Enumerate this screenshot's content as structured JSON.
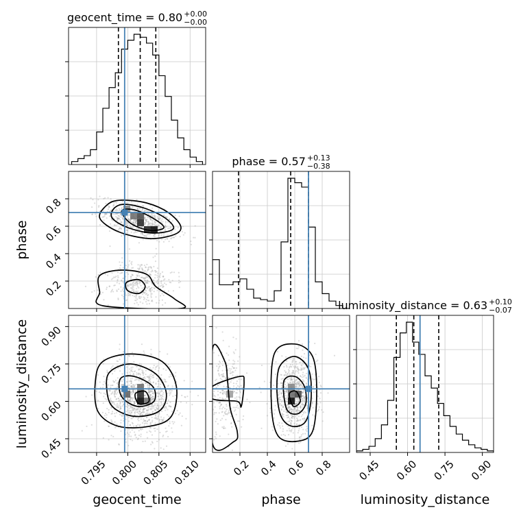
{
  "chart_data": {
    "type": "corner",
    "parameters": [
      "geocent_time",
      "phase",
      "luminosity_distance"
    ],
    "titles": [
      {
        "param": "geocent_time",
        "prefix": "geocent_time = ",
        "median": "0.80",
        "plus": "+0.00",
        "minus": "−0.00"
      },
      {
        "param": "phase",
        "prefix": "phase = ",
        "median": "0.57",
        "plus": "+0.13",
        "minus": "−0.38"
      },
      {
        "param": "luminosity_distance",
        "prefix": "luminosity_distance = ",
        "median": "0.63",
        "plus": "+0.10",
        "minus": "−0.07"
      }
    ],
    "axis_labels": {
      "geocent_time": "geocent_time",
      "phase": "phase",
      "luminosity_distance": "luminosity_distance"
    },
    "ranges": {
      "geocent_time": [
        0.7905,
        0.8125
      ],
      "phase": [
        0.0,
        1.0
      ],
      "luminosity_distance": [
        0.395,
        0.945
      ]
    },
    "ticks": {
      "geocent_time": [
        {
          "v": 0.795,
          "label": "0.795"
        },
        {
          "v": 0.8,
          "label": "0.800"
        },
        {
          "v": 0.805,
          "label": "0.805"
        },
        {
          "v": 0.81,
          "label": "0.810"
        }
      ],
      "phase": [
        {
          "v": 0.2,
          "label": "0.2"
        },
        {
          "v": 0.4,
          "label": "0.4"
        },
        {
          "v": 0.6,
          "label": "0.6"
        },
        {
          "v": 0.8,
          "label": "0.8"
        }
      ],
      "luminosity_distance": [
        {
          "v": 0.45,
          "label": "0.45"
        },
        {
          "v": 0.6,
          "label": "0.60"
        },
        {
          "v": 0.75,
          "label": "0.75"
        },
        {
          "v": 0.9,
          "label": "0.90"
        }
      ]
    },
    "truths": {
      "geocent_time": 0.7995,
      "phase": 0.7,
      "luminosity_distance": 0.65
    },
    "quantiles": {
      "geocent_time": [
        0.7985,
        0.802,
        0.8045
      ],
      "phase": [
        0.19,
        0.57,
        0.7
      ],
      "luminosity_distance": [
        0.555,
        0.625,
        0.725
      ]
    },
    "histograms": {
      "geocent_time": {
        "edges": [
          0.791,
          0.792,
          0.793,
          0.794,
          0.795,
          0.796,
          0.797,
          0.798,
          0.799,
          0.8,
          0.801,
          0.802,
          0.803,
          0.804,
          0.805,
          0.806,
          0.807,
          0.808,
          0.809,
          0.81,
          0.811,
          0.812
        ],
        "counts": [
          2,
          4,
          6,
          10,
          22,
          38,
          52,
          62,
          78,
          84,
          88,
          86,
          82,
          74,
          60,
          46,
          30,
          18,
          10,
          5,
          2
        ]
      },
      "phase": {
        "edges": [
          0.0,
          0.05,
          0.1,
          0.15,
          0.2,
          0.25,
          0.3,
          0.35,
          0.4,
          0.45,
          0.5,
          0.55,
          0.6,
          0.65,
          0.7,
          0.75,
          0.8,
          0.85,
          0.9,
          0.95,
          1.0
        ],
        "counts": [
          33,
          16,
          16,
          18,
          20,
          13,
          7,
          6,
          5,
          12,
          45,
          88,
          85,
          82,
          55,
          18,
          10,
          5,
          2,
          0
        ]
      },
      "luminosity_distance": {
        "edges": [
          0.395,
          0.42,
          0.445,
          0.47,
          0.495,
          0.52,
          0.545,
          0.57,
          0.595,
          0.62,
          0.645,
          0.67,
          0.695,
          0.72,
          0.745,
          0.77,
          0.795,
          0.82,
          0.845,
          0.87,
          0.895,
          0.92,
          0.945
        ],
        "counts": [
          1,
          2,
          4,
          9,
          18,
          34,
          62,
          78,
          85,
          72,
          64,
          50,
          42,
          32,
          24,
          17,
          12,
          8,
          5,
          3,
          2,
          1
        ]
      }
    },
    "grid": true
  }
}
